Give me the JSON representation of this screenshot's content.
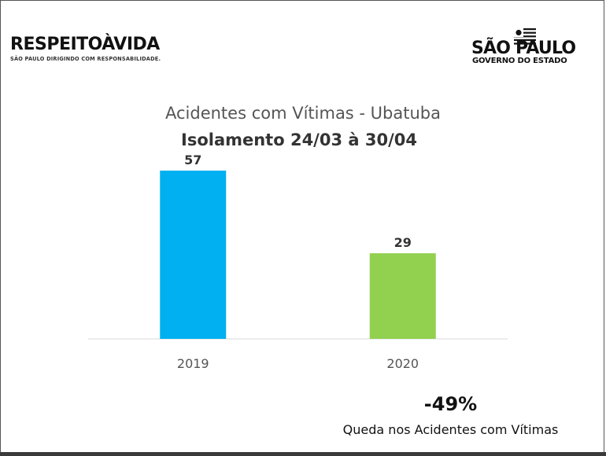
{
  "logos": {
    "left_main": "RESPEITOÀVIDA",
    "left_sub": "SÃO PAULO DIRIGINDO COM RESPONSABILIDADE.",
    "right_name": "SÃO PAULO",
    "right_sub": "GOVERNO DO ESTADO"
  },
  "chart_data": {
    "type": "bar",
    "title": "Acidentes com Vítimas - Ubatuba",
    "subtitle": "Isolamento 24/03 à 30/04",
    "categories": [
      "2019",
      "2020"
    ],
    "values": [
      57,
      29
    ],
    "data_labels": [
      "57",
      "29"
    ],
    "colors": [
      "#00b0f0",
      "#92d050"
    ],
    "ylim": [
      0,
      57
    ],
    "grid": false,
    "legend": "none"
  },
  "summary": {
    "value": "-49%",
    "label": "Queda nos Acidentes com Vítimas"
  }
}
